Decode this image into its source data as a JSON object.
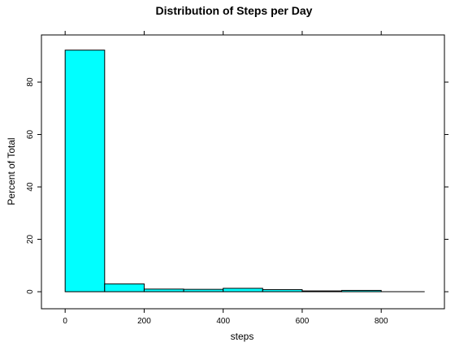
{
  "chart_data": {
    "type": "bar",
    "title": "Distribution of Steps per Day",
    "xlabel": "steps",
    "ylabel": "Percent of Total",
    "bin_edges": [
      0,
      100,
      200,
      300,
      400,
      500,
      600,
      700,
      800
    ],
    "values": [
      92.2,
      3.0,
      1.0,
      0.9,
      1.3,
      0.8,
      0.3,
      0.5
    ],
    "xlim": [
      -60,
      960
    ],
    "ylim": [
      -6.5,
      98
    ],
    "x_ticks": [
      0,
      200,
      400,
      600,
      800
    ],
    "x_tick_labels": [
      "0",
      "200",
      "400",
      "600",
      "800"
    ],
    "y_ticks": [
      0,
      20,
      40,
      60,
      80
    ],
    "y_tick_labels": [
      "0",
      "20",
      "40",
      "60",
      "80"
    ],
    "baseline": [
      0,
      910
    ],
    "grid": false,
    "colors": {
      "bar_fill": "#00ffff",
      "bar_stroke": "#000000",
      "frame": "#000000"
    }
  }
}
